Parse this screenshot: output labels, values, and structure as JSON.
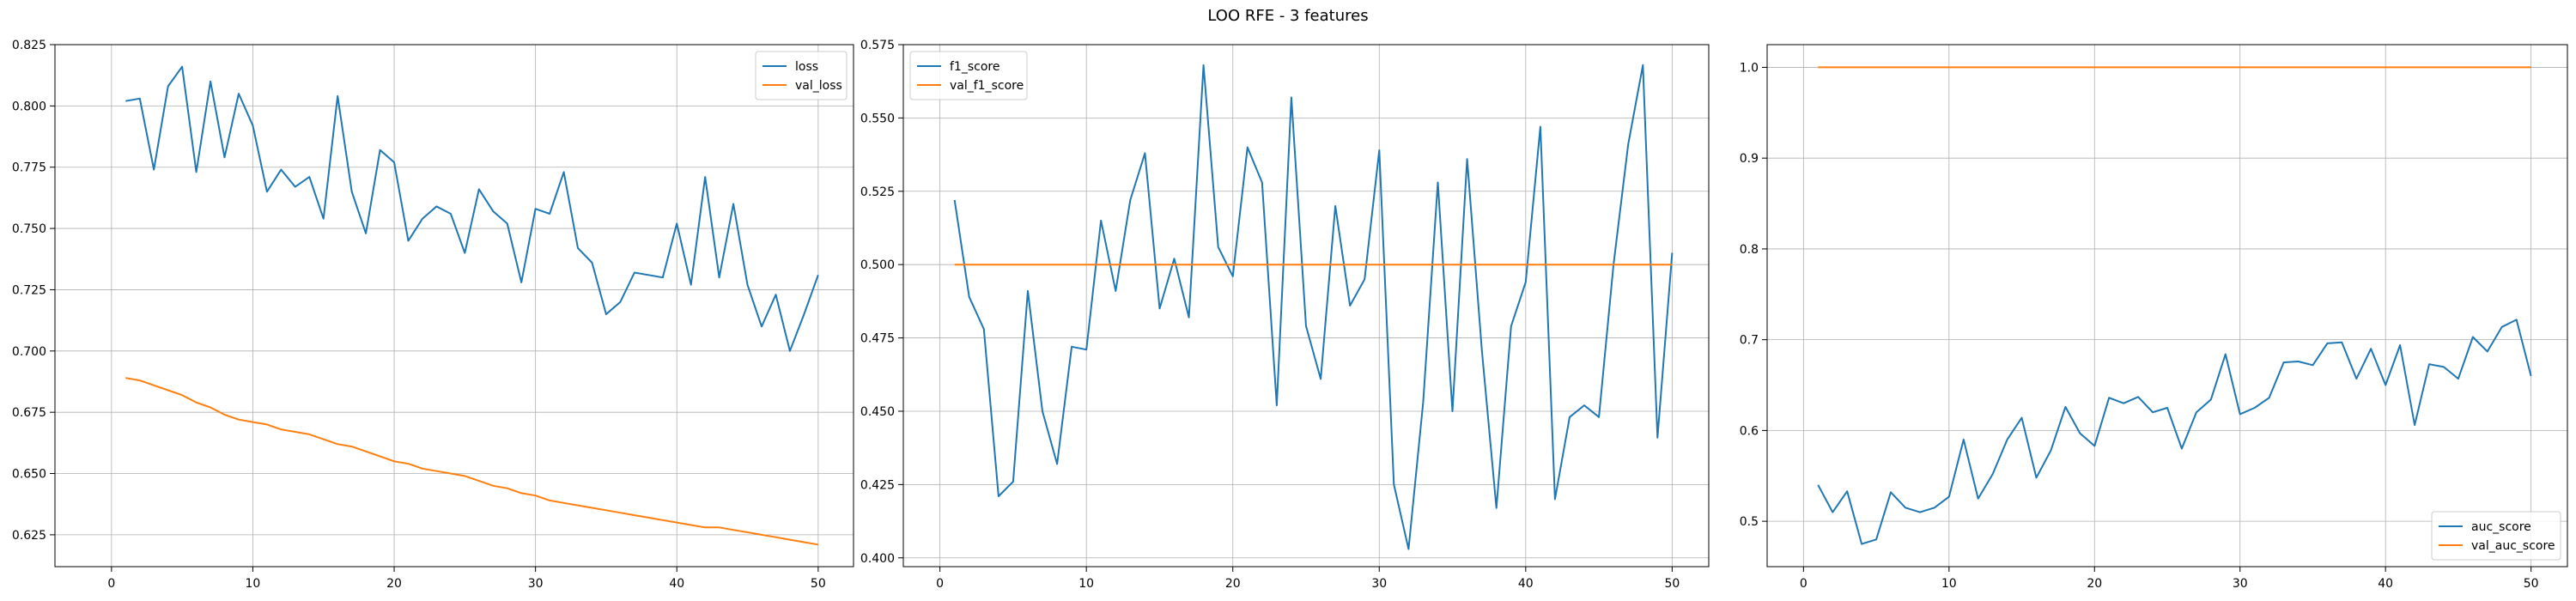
{
  "title": "LOO RFE - 3 features",
  "colors": {
    "blue": "#1f77b4",
    "orange": "#ff7f0e"
  },
  "chart_data": [
    {
      "type": "line",
      "xlim": [
        -4,
        52.5
      ],
      "ylim": [
        0.612,
        0.825
      ],
      "xticks": [
        0,
        10,
        20,
        30,
        40,
        50
      ],
      "yticks": [
        0.625,
        0.65,
        0.675,
        0.7,
        0.725,
        0.75,
        0.775,
        0.8,
        0.825
      ],
      "ytick_labels": [
        "0.625",
        "0.650",
        "0.675",
        "0.700",
        "0.725",
        "0.750",
        "0.775",
        "0.800",
        "0.825"
      ],
      "grid": true,
      "legend_position": "upper right",
      "series": [
        {
          "name": "loss",
          "color": "#1f77b4",
          "x": [
            1,
            2,
            3,
            4,
            5,
            6,
            7,
            8,
            9,
            10,
            11,
            12,
            13,
            14,
            15,
            16,
            17,
            18,
            19,
            20,
            21,
            22,
            23,
            24,
            25,
            26,
            27,
            28,
            29,
            30,
            31,
            32,
            33,
            34,
            35,
            36,
            37,
            38,
            39,
            40,
            41,
            42,
            43,
            44,
            45,
            46,
            47,
            48,
            49,
            50
          ],
          "y": [
            0.802,
            0.803,
            0.774,
            0.808,
            0.816,
            0.773,
            0.81,
            0.779,
            0.805,
            0.792,
            0.765,
            0.774,
            0.767,
            0.771,
            0.754,
            0.804,
            0.765,
            0.748,
            0.782,
            0.777,
            0.745,
            0.754,
            0.759,
            0.756,
            0.74,
            0.766,
            0.757,
            0.752,
            0.728,
            0.758,
            0.756,
            0.773,
            0.742,
            0.736,
            0.715,
            0.72,
            0.732,
            0.731,
            0.73,
            0.752,
            0.727,
            0.771,
            0.73,
            0.76,
            0.727,
            0.71,
            0.723,
            0.7,
            0.715,
            0.731
          ]
        },
        {
          "name": "val_loss",
          "color": "#ff7f0e",
          "x": [
            1,
            2,
            3,
            4,
            5,
            6,
            7,
            8,
            9,
            10,
            11,
            12,
            13,
            14,
            15,
            16,
            17,
            18,
            19,
            20,
            21,
            22,
            23,
            24,
            25,
            26,
            27,
            28,
            29,
            30,
            31,
            32,
            33,
            34,
            35,
            36,
            37,
            38,
            39,
            40,
            41,
            42,
            43,
            44,
            45,
            46,
            47,
            48,
            49,
            50
          ],
          "y": [
            0.689,
            0.688,
            0.686,
            0.684,
            0.682,
            0.679,
            0.677,
            0.674,
            0.672,
            0.671,
            0.67,
            0.668,
            0.667,
            0.666,
            0.664,
            0.662,
            0.661,
            0.659,
            0.657,
            0.655,
            0.654,
            0.652,
            0.651,
            0.65,
            0.649,
            0.647,
            0.645,
            0.644,
            0.642,
            0.641,
            0.639,
            0.638,
            0.637,
            0.636,
            0.635,
            0.634,
            0.633,
            0.632,
            0.631,
            0.63,
            0.629,
            0.628,
            0.628,
            0.627,
            0.626,
            0.625,
            0.624,
            0.623,
            0.622,
            0.621
          ]
        }
      ]
    },
    {
      "type": "line",
      "xlim": [
        -2.5,
        52.5
      ],
      "ylim": [
        0.397,
        0.575
      ],
      "xticks": [
        0,
        10,
        20,
        30,
        40,
        50
      ],
      "yticks": [
        0.4,
        0.425,
        0.45,
        0.475,
        0.5,
        0.525,
        0.55,
        0.575
      ],
      "ytick_labels": [
        "0.400",
        "0.425",
        "0.450",
        "0.475",
        "0.500",
        "0.525",
        "0.550",
        "0.575"
      ],
      "grid": true,
      "legend_position": "upper left",
      "series": [
        {
          "name": "f1_score",
          "color": "#1f77b4",
          "x": [
            1,
            2,
            3,
            4,
            5,
            6,
            7,
            8,
            9,
            10,
            11,
            12,
            13,
            14,
            15,
            16,
            17,
            18,
            19,
            20,
            21,
            22,
            23,
            24,
            25,
            26,
            27,
            28,
            29,
            30,
            31,
            32,
            33,
            34,
            35,
            36,
            37,
            38,
            39,
            40,
            41,
            42,
            43,
            44,
            45,
            46,
            47,
            48,
            49,
            50
          ],
          "y": [
            0.522,
            0.489,
            0.478,
            0.421,
            0.426,
            0.491,
            0.45,
            0.432,
            0.472,
            0.471,
            0.515,
            0.491,
            0.522,
            0.538,
            0.485,
            0.502,
            0.482,
            0.568,
            0.506,
            0.496,
            0.54,
            0.528,
            0.452,
            0.557,
            0.479,
            0.461,
            0.52,
            0.486,
            0.495,
            0.539,
            0.425,
            0.403,
            0.453,
            0.528,
            0.45,
            0.536,
            0.471,
            0.417,
            0.479,
            0.494,
            0.547,
            0.42,
            0.448,
            0.452,
            0.448,
            0.5,
            0.541,
            0.568,
            0.441,
            0.504
          ]
        },
        {
          "name": "val_f1_score",
          "color": "#ff7f0e",
          "x": [
            1,
            50
          ],
          "y": [
            0.5,
            0.5
          ]
        }
      ]
    },
    {
      "type": "line",
      "xlim": [
        -2.5,
        52.5
      ],
      "ylim": [
        0.45,
        1.025
      ],
      "xticks": [
        0,
        10,
        20,
        30,
        40,
        50
      ],
      "yticks": [
        0.5,
        0.6,
        0.7,
        0.8,
        0.9,
        1.0
      ],
      "ytick_labels": [
        "0.5",
        "0.6",
        "0.7",
        "0.8",
        "0.9",
        "1.0"
      ],
      "grid": true,
      "legend_position": "lower right",
      "series": [
        {
          "name": "auc_score",
          "color": "#1f77b4",
          "x": [
            1,
            2,
            3,
            4,
            5,
            6,
            7,
            8,
            9,
            10,
            11,
            12,
            13,
            14,
            15,
            16,
            17,
            18,
            19,
            20,
            21,
            22,
            23,
            24,
            25,
            26,
            27,
            28,
            29,
            30,
            31,
            32,
            33,
            34,
            35,
            36,
            37,
            38,
            39,
            40,
            41,
            42,
            43,
            44,
            45,
            46,
            47,
            48,
            49,
            50
          ],
          "y": [
            0.54,
            0.51,
            0.533,
            0.475,
            0.48,
            0.532,
            0.515,
            0.51,
            0.515,
            0.527,
            0.59,
            0.525,
            0.552,
            0.59,
            0.614,
            0.548,
            0.578,
            0.626,
            0.597,
            0.583,
            0.636,
            0.63,
            0.637,
            0.62,
            0.625,
            0.58,
            0.62,
            0.634,
            0.684,
            0.618,
            0.625,
            0.636,
            0.675,
            0.676,
            0.672,
            0.696,
            0.697,
            0.657,
            0.69,
            0.65,
            0.694,
            0.606,
            0.673,
            0.67,
            0.657,
            0.703,
            0.687,
            0.714,
            0.722,
            0.66
          ]
        },
        {
          "name": "val_auc_score",
          "color": "#ff7f0e",
          "x": [
            1,
            50
          ],
          "y": [
            1.0,
            1.0
          ]
        }
      ]
    }
  ]
}
